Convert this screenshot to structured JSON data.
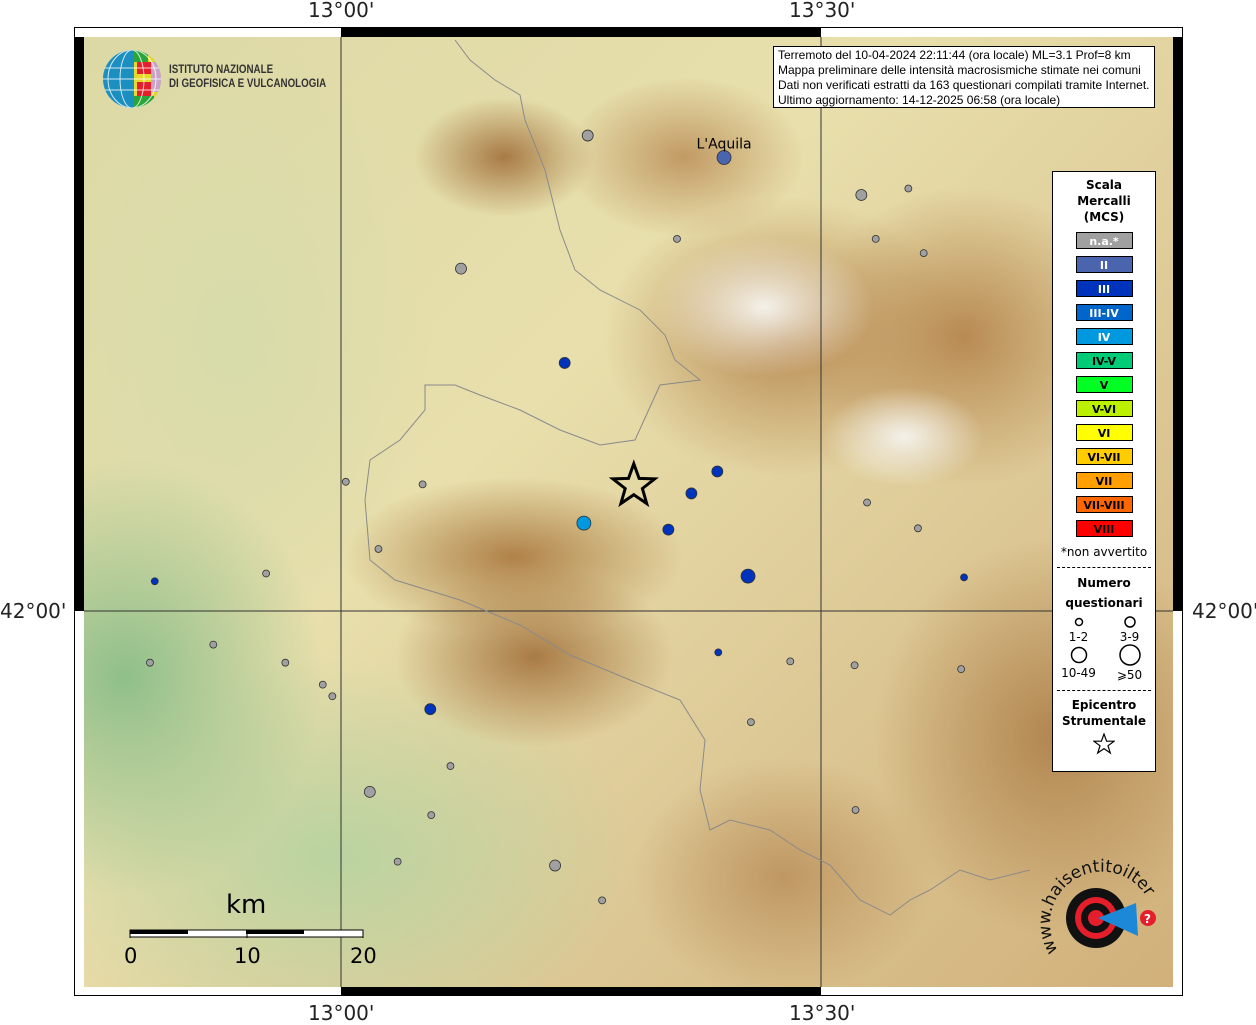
{
  "info": {
    "line1": "Terremoto del 10-04-2024 22:11:44 (ora locale) ML=3.1 Prof=8 km",
    "line2": "Mappa preliminare delle intensità macrosismiche stimate nei comuni",
    "line3": "Dati non verificati estratti da 163 questionari compilati tramite Internet.",
    "line4": "Ultimo aggiornamento: 14-12-2025 06:58 (ora locale)"
  },
  "logo": {
    "line1": "ISTITUTO NAZIONALE",
    "line2": "DI GEOFISICA E VULCANOLOGIA"
  },
  "logo2": "www.haisentitoilterremoto.it",
  "axes": {
    "top": [
      "13°00'",
      "13°30'"
    ],
    "bottom": [
      "13°00'",
      "13°30'"
    ],
    "left": "42°00'",
    "right": "42°00'"
  },
  "places": [
    {
      "name": "L'Aquila",
      "lon": 13.399,
      "lat": 42.351
    }
  ],
  "legend": {
    "title": [
      "Scala",
      "Mercalli",
      "(MCS)"
    ],
    "classes": [
      {
        "label": "n.a.*",
        "color": "#a0a0a0",
        "text": "#ffffff"
      },
      {
        "label": "II",
        "color": "#4a64ae",
        "text": "#ffffff"
      },
      {
        "label": "III",
        "color": "#0033bb",
        "text": "#ffffff"
      },
      {
        "label": "III-IV",
        "color": "#0066cc",
        "text": "#ffffff"
      },
      {
        "label": "IV",
        "color": "#0099e0",
        "text": "#ffffff"
      },
      {
        "label": "IV-V",
        "color": "#00cc77",
        "text": "#000000"
      },
      {
        "label": "V",
        "color": "#00ff22",
        "text": "#000000"
      },
      {
        "label": "V-VI",
        "color": "#bbf000",
        "text": "#000000"
      },
      {
        "label": "VI",
        "color": "#ffff00",
        "text": "#000000"
      },
      {
        "label": "VI-VII",
        "color": "#ffcc00",
        "text": "#000000"
      },
      {
        "label": "VII",
        "color": "#ffa000",
        "text": "#000000"
      },
      {
        "label": "VII-VIII",
        "color": "#ff6600",
        "text": "#000000"
      },
      {
        "label": "VIII",
        "color": "#ff0000",
        "text": "#000000"
      }
    ],
    "note": "*non avvertito",
    "count_title": [
      "Numero",
      "questionari"
    ],
    "sizes": [
      "1-2",
      "3-9",
      "10-49",
      "⩾50"
    ],
    "epicenter_title": [
      "Epicentro",
      "Strumentale"
    ]
  },
  "scale": {
    "unit": "km",
    "ticks": [
      "0",
      "10",
      "20"
    ]
  },
  "epicenter": {
    "lon": 13.305,
    "lat": 42.097
  },
  "points": [
    {
      "lon": 13.257,
      "lat": 42.368,
      "mcs": "n.a.*",
      "size": "3-9"
    },
    {
      "lon": 13.399,
      "lat": 42.351,
      "mcs": "II",
      "size": "10-49"
    },
    {
      "lon": 13.542,
      "lat": 42.322,
      "mcs": "n.a.*",
      "size": "3-9"
    },
    {
      "lon": 13.591,
      "lat": 42.327,
      "mcs": "n.a.*",
      "size": "1-2"
    },
    {
      "lon": 13.35,
      "lat": 42.288,
      "mcs": "n.a.*",
      "size": "1-2"
    },
    {
      "lon": 13.557,
      "lat": 42.288,
      "mcs": "n.a.*",
      "size": "1-2"
    },
    {
      "lon": 13.607,
      "lat": 42.277,
      "mcs": "n.a.*",
      "size": "1-2"
    },
    {
      "lon": 13.125,
      "lat": 42.265,
      "mcs": "n.a.*",
      "size": "3-9"
    },
    {
      "lon": 13.233,
      "lat": 42.192,
      "mcs": "III",
      "size": "3-9"
    },
    {
      "lon": 13.392,
      "lat": 42.108,
      "mcs": "III",
      "size": "3-9"
    },
    {
      "lon": 13.365,
      "lat": 42.091,
      "mcs": "III",
      "size": "3-9"
    },
    {
      "lon": 13.253,
      "lat": 42.068,
      "mcs": "IV",
      "size": "10-49"
    },
    {
      "lon": 13.341,
      "lat": 42.063,
      "mcs": "III",
      "size": "3-9"
    },
    {
      "lon": 13.424,
      "lat": 42.027,
      "mcs": "III",
      "size": "10-49"
    },
    {
      "lon": 13.005,
      "lat": 42.1,
      "mcs": "n.a.*",
      "size": "1-2"
    },
    {
      "lon": 13.085,
      "lat": 42.098,
      "mcs": "n.a.*",
      "size": "1-2"
    },
    {
      "lon": 13.039,
      "lat": 42.048,
      "mcs": "n.a.*",
      "size": "1-2"
    },
    {
      "lon": 12.922,
      "lat": 42.029,
      "mcs": "n.a.*",
      "size": "1-2"
    },
    {
      "lon": 12.806,
      "lat": 42.023,
      "mcs": "III",
      "size": "1-2"
    },
    {
      "lon": 13.548,
      "lat": 42.084,
      "mcs": "n.a.*",
      "size": "1-2"
    },
    {
      "lon": 13.601,
      "lat": 42.064,
      "mcs": "n.a.*",
      "size": "1-2"
    },
    {
      "lon": 13.649,
      "lat": 42.026,
      "mcs": "III",
      "size": "1-2"
    },
    {
      "lon": 13.393,
      "lat": 41.968,
      "mcs": "III",
      "size": "1-2"
    },
    {
      "lon": 13.468,
      "lat": 41.961,
      "mcs": "n.a.*",
      "size": "1-2"
    },
    {
      "lon": 13.535,
      "lat": 41.958,
      "mcs": "n.a.*",
      "size": "1-2"
    },
    {
      "lon": 13.646,
      "lat": 41.955,
      "mcs": "n.a.*",
      "size": "1-2"
    },
    {
      "lon": 12.867,
      "lat": 41.974,
      "mcs": "n.a.*",
      "size": "1-2"
    },
    {
      "lon": 12.801,
      "lat": 41.96,
      "mcs": "n.a.*",
      "size": "1-2"
    },
    {
      "lon": 12.942,
      "lat": 41.96,
      "mcs": "n.a.*",
      "size": "1-2"
    },
    {
      "lon": 12.981,
      "lat": 41.943,
      "mcs": "n.a.*",
      "size": "1-2"
    },
    {
      "lon": 12.991,
      "lat": 41.934,
      "mcs": "n.a.*",
      "size": "1-2"
    },
    {
      "lon": 13.093,
      "lat": 41.924,
      "mcs": "III",
      "size": "3-9"
    },
    {
      "lon": 13.427,
      "lat": 41.914,
      "mcs": "n.a.*",
      "size": "1-2"
    },
    {
      "lon": 13.114,
      "lat": 41.88,
      "mcs": "n.a.*",
      "size": "1-2"
    },
    {
      "lon": 13.03,
      "lat": 41.86,
      "mcs": "n.a.*",
      "size": "3-9"
    },
    {
      "lon": 13.094,
      "lat": 41.842,
      "mcs": "n.a.*",
      "size": "1-2"
    },
    {
      "lon": 13.536,
      "lat": 41.846,
      "mcs": "n.a.*",
      "size": "1-2"
    },
    {
      "lon": 13.059,
      "lat": 41.806,
      "mcs": "n.a.*",
      "size": "1-2"
    },
    {
      "lon": 13.223,
      "lat": 41.803,
      "mcs": "n.a.*",
      "size": "3-9"
    },
    {
      "lon": 13.272,
      "lat": 41.776,
      "mcs": "n.a.*",
      "size": "1-2"
    }
  ]
}
